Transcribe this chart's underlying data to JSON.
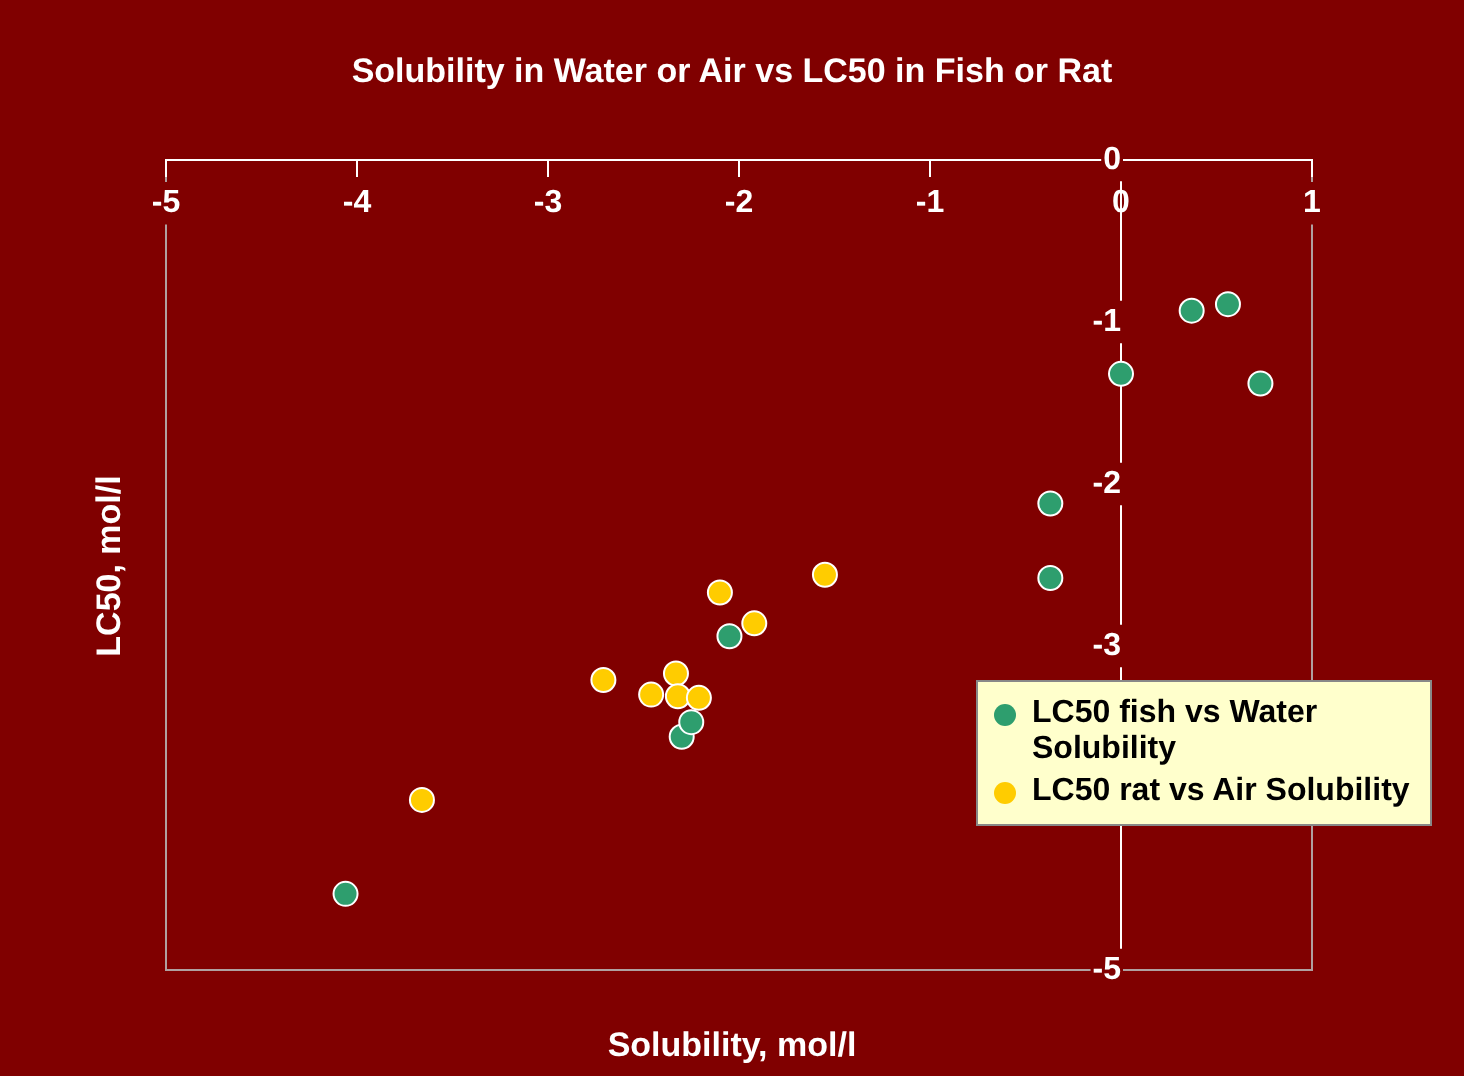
{
  "chart_data": {
    "type": "scatter",
    "title": "Solubility in Water or Air vs LC50 in Fish or Rat",
    "xlabel": "Solubility, mol/l",
    "ylabel": "LC50, mol/l",
    "xlim": [
      -5,
      1
    ],
    "xticks": [
      -5,
      -4,
      -3,
      -2,
      -1,
      0,
      1
    ],
    "ylim": [
      -5,
      0
    ],
    "yticks": [
      -5,
      -3,
      -2,
      -1,
      0
    ],
    "grid": false,
    "legend": "bottom right",
    "marker": "circle",
    "series": [
      {
        "name": "LC50 fish vs Water Solubility",
        "color": "#2e9e6e",
        "x": [
          -4.06,
          -2.3,
          -2.25,
          -2.05,
          -0.37,
          -0.37,
          0.0,
          0.37,
          0.56,
          0.73
        ],
        "values": [
          -4.53,
          -3.56,
          -3.47,
          -2.94,
          -2.12,
          -2.58,
          -1.32,
          -0.93,
          -0.89,
          -1.38
        ]
      },
      {
        "name": "LC50 rat vs Air Solubility",
        "color": "#ffcc00",
        "x": [
          -3.66,
          -2.71,
          -2.46,
          -2.33,
          -2.32,
          -2.21,
          -2.1,
          -1.92,
          -1.55
        ],
        "values": [
          -3.95,
          -3.21,
          -3.3,
          -3.17,
          -3.31,
          -3.32,
          -2.67,
          -2.86,
          -2.56
        ]
      }
    ]
  }
}
